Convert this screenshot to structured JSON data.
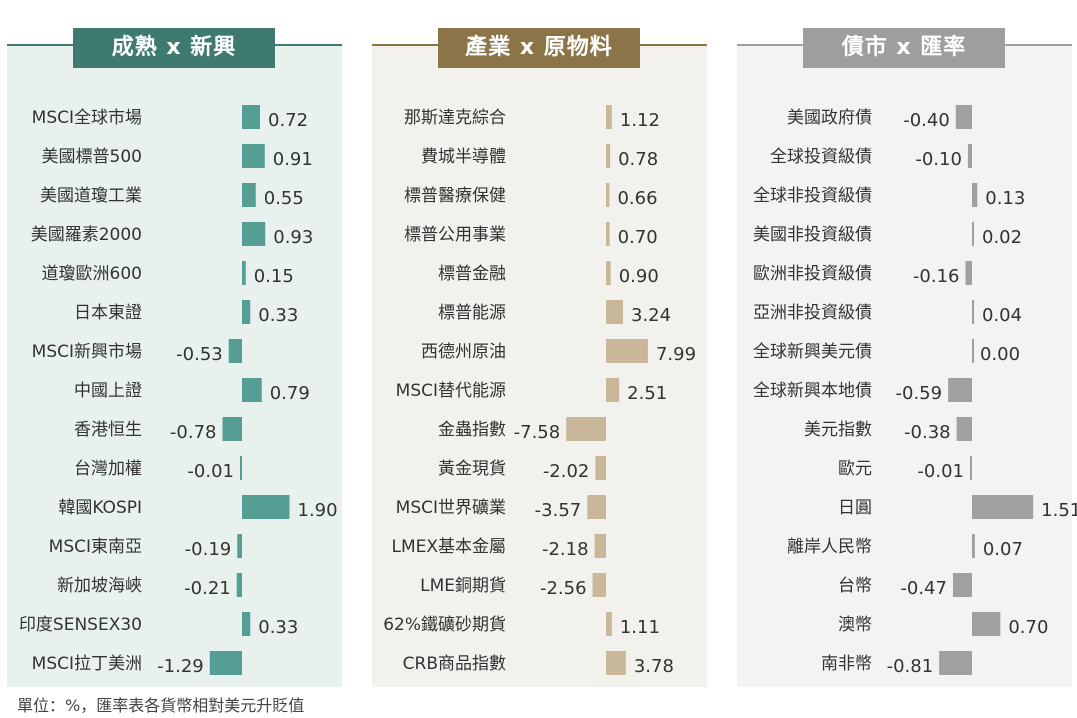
{
  "footnote": "單位：%，匯率表各貨幣相對美元升貶值",
  "chart_data": [
    {
      "type": "bar",
      "orientation": "horizontal",
      "title": "成熟 x 新興",
      "color": "#559e94",
      "header_color": "#3f7a70",
      "background": "#e9f1ef",
      "categories": [
        "MSCI全球市場",
        "美國標普500",
        "美國道瓊工業",
        "美國羅素2000",
        "道瓊歐洲600",
        "日本東證",
        "MSCI新興市場",
        "中國上證",
        "香港恒生",
        "台灣加權",
        "韓國KOSPI",
        "MSCI東南亞",
        "新加坡海峽",
        "印度SENSEX30",
        "MSCI拉丁美洲"
      ],
      "values": [
        0.72,
        0.91,
        0.55,
        0.93,
        0.15,
        0.33,
        -0.53,
        0.79,
        -0.78,
        -0.01,
        1.9,
        -0.19,
        -0.21,
        0.33,
        -1.29
      ],
      "labels": [
        "0.72",
        "0.91",
        "0.55",
        "0.93",
        "0.15",
        "0.33",
        "-0.53",
        "0.79",
        "-0.78",
        "-0.01",
        "1.90",
        "-0.19",
        "-0.21",
        "0.33",
        "-1.29"
      ]
    },
    {
      "type": "bar",
      "orientation": "horizontal",
      "title": "產業 x 原物料",
      "color": "#c9b79a",
      "header_color": "#8a7448",
      "background": "#f3f1ed",
      "categories": [
        "那斯達克綜合",
        "費城半導體",
        "標普醫療保健",
        "標普公用事業",
        "標普金融",
        "標普能源",
        "西德州原油",
        "MSCI替代能源",
        "金蟲指數",
        "黃金現貨",
        "MSCI世界礦業",
        "LMEX基本金屬",
        "LME銅期貨",
        "62%鐵礦砂期貨",
        "CRB商品指數"
      ],
      "values": [
        1.12,
        0.78,
        0.66,
        0.7,
        0.9,
        3.24,
        7.99,
        2.51,
        -7.58,
        -2.02,
        -3.57,
        -2.18,
        -2.56,
        1.11,
        3.78
      ],
      "labels": [
        "1.12",
        "0.78",
        "0.66",
        "0.70",
        "0.90",
        "3.24",
        "7.99",
        "2.51",
        "-7.58",
        "-2.02",
        "-3.57",
        "-2.18",
        "-2.56",
        "1.11",
        "3.78"
      ]
    },
    {
      "type": "bar",
      "orientation": "horizontal",
      "title": "債市 x 匯率",
      "color": "#a0a0a0",
      "header_color": "#9e9e9e",
      "background": "#f3f3f3",
      "categories": [
        "美國政府債",
        "全球投資級債",
        "全球非投資級債",
        "美國非投資級債",
        "歐洲非投資級債",
        "亞洲非投資級債",
        "全球新興美元債",
        "全球新興本地債",
        "美元指數",
        "歐元",
        "日圓",
        "離岸人民幣",
        "台幣",
        "澳幣",
        "南非幣"
      ],
      "values": [
        -0.4,
        -0.1,
        0.13,
        0.02,
        -0.16,
        0.04,
        0.0,
        -0.59,
        -0.38,
        -0.01,
        1.51,
        0.07,
        -0.47,
        0.7,
        -0.81
      ],
      "labels": [
        "-0.40",
        "-0.10",
        "0.13",
        "0.02",
        "-0.16",
        "0.04",
        "0.00",
        "-0.59",
        "-0.38",
        "-0.01",
        "1.51",
        "0.07",
        "-0.47",
        "0.70",
        "-0.81"
      ]
    }
  ]
}
